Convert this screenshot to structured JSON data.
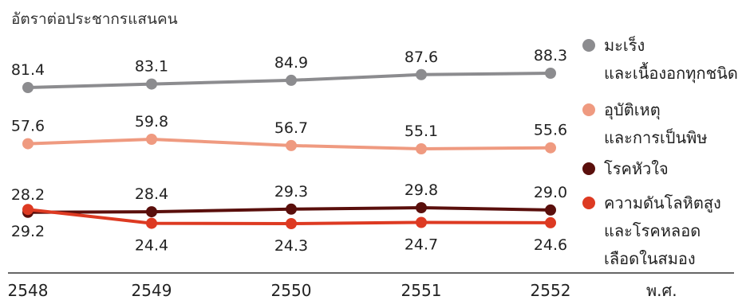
{
  "chart_data": {
    "type": "line",
    "ylabel": "อัตราต่อประชากรแสนคน",
    "xunit": "พ.ศ.",
    "x": [
      "2548",
      "2549",
      "2550",
      "2551",
      "2552"
    ],
    "ylim": [
      15,
      95
    ],
    "grid": false,
    "legend_position": "right",
    "series": [
      {
        "name": "มะเร็งและเนื้องอกทุกชนิด",
        "legend_lines": [
          "มะเร็ง",
          "และเนื้องอกทุกชนิด"
        ],
        "values": [
          81.4,
          83.1,
          84.9,
          87.6,
          88.3
        ],
        "labels": [
          "81.4",
          "83.1",
          "84.9",
          "87.6",
          "88.3"
        ],
        "label_position": "above",
        "color": "#8c8c8f"
      },
      {
        "name": "อุบัติเหตุและการเป็นพิษ",
        "legend_lines": [
          "อุบัติเหตุ",
          "และการเป็นพิษ"
        ],
        "values": [
          57.6,
          59.8,
          56.7,
          55.1,
          55.6
        ],
        "labels": [
          "57.6",
          "59.8",
          "56.7",
          "55.1",
          "55.6"
        ],
        "label_position": "above",
        "color": "#ef9a80"
      },
      {
        "name": "โรคหัวใจ",
        "legend_lines": [
          "โรคหัวใจ"
        ],
        "values": [
          28.2,
          28.4,
          29.3,
          29.8,
          29.0
        ],
        "labels": [
          "28.2",
          "28.4",
          "29.3",
          "29.8",
          "29.0"
        ],
        "label_position": "above",
        "color": "#5a0f0c"
      },
      {
        "name": "ความดันโลหิตสูงและโรคหลอดเลือดในสมอง",
        "legend_lines": [
          "ความดันโลหิตสูง",
          "และโรคหลอด",
          "เลือดในสมอง"
        ],
        "values": [
          29.2,
          24.4,
          24.3,
          24.7,
          24.6
        ],
        "labels": [
          "29.2",
          "24.4",
          "24.3",
          "24.7",
          "24.6"
        ],
        "label_position": "below",
        "color": "#dd3a22"
      }
    ]
  }
}
